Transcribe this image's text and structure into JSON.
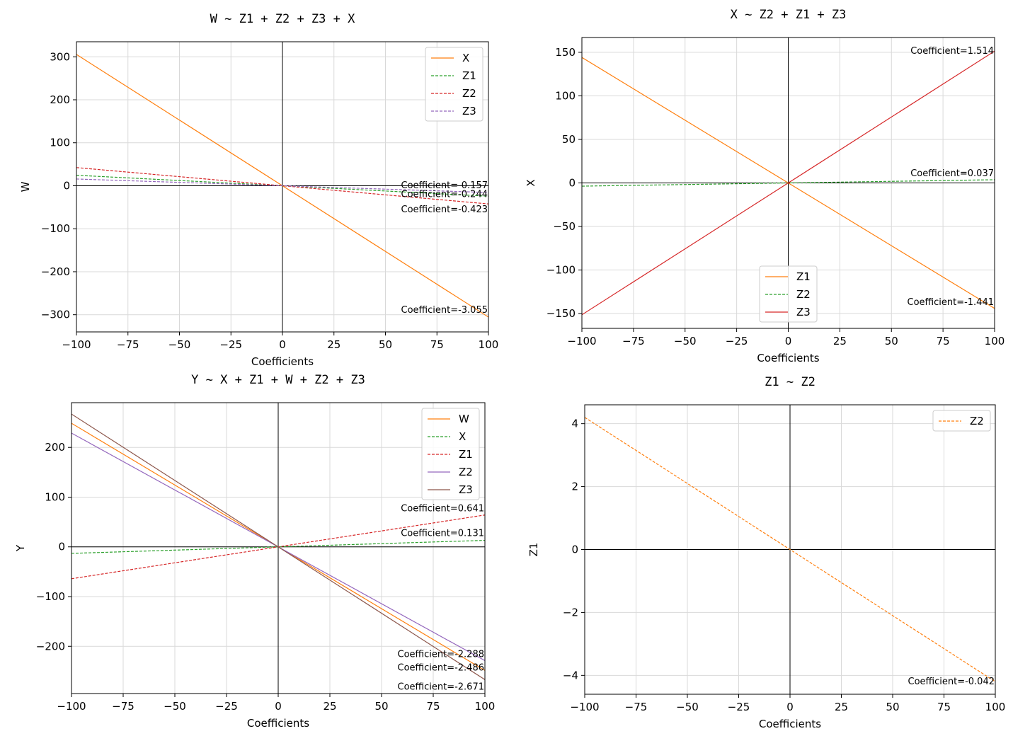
{
  "chart_data": [
    {
      "type": "line",
      "title": "W ~ Z1 + Z2 + Z3 + X",
      "xlabel": "Coefficients",
      "ylabel": "W",
      "xlim": [
        -100,
        100
      ],
      "ylim": [
        -340,
        335
      ],
      "xticks": [
        -100,
        -75,
        -50,
        -25,
        0,
        25,
        50,
        75,
        100
      ],
      "xtick_labels": [
        "−100",
        "−75",
        "−50",
        "−25",
        "0",
        "25",
        "50",
        "75",
        "100"
      ],
      "yticks": [
        300,
        200,
        100,
        0,
        -100,
        -200,
        -300
      ],
      "ytick_labels": [
        "300",
        "200",
        "100",
        "0",
        "−100",
        "−200",
        "−300"
      ],
      "grid": true,
      "legend_position": "upper-right",
      "series": [
        {
          "name": "X",
          "slope": -3.055,
          "color": "#ff7f0e",
          "dash": "solid"
        },
        {
          "name": "Z1",
          "slope": -0.244,
          "color": "#2ca02c",
          "dash": "dashed"
        },
        {
          "name": "Z2",
          "slope": -0.423,
          "color": "#d62728",
          "dash": "dashed"
        },
        {
          "name": "Z3",
          "slope": -0.157,
          "color": "#9467bd",
          "dash": "dashed"
        }
      ],
      "annotations": [
        {
          "text": "Coefficient=-0.157",
          "x": 100,
          "y": -0.157
        },
        {
          "text": "Coefficient=-0.244",
          "x": 100,
          "y": -0.244
        },
        {
          "text": "Coefficient=-0.423",
          "x": 100,
          "y": -0.423
        },
        {
          "text": "Coefficient=-3.055",
          "x": 100,
          "y": -3.055
        }
      ]
    },
    {
      "type": "line",
      "title": "X ~ Z2 + Z1 + Z3",
      "xlabel": "Coefficients",
      "ylabel": "X",
      "xlim": [
        -100,
        100
      ],
      "ylim": [
        -167,
        167
      ],
      "xticks": [
        -100,
        -75,
        -50,
        -25,
        0,
        25,
        50,
        75,
        100
      ],
      "xtick_labels": [
        "−100",
        "−75",
        "−50",
        "−25",
        "0",
        "25",
        "50",
        "75",
        "100"
      ],
      "yticks": [
        150,
        100,
        50,
        0,
        -50,
        -100,
        -150
      ],
      "ytick_labels": [
        "150",
        "100",
        "50",
        "0",
        "−50",
        "−100",
        "−150"
      ],
      "grid": true,
      "legend_position": "lower-center",
      "series": [
        {
          "name": "Z1",
          "slope": -1.441,
          "color": "#ff7f0e",
          "dash": "solid"
        },
        {
          "name": "Z2",
          "slope": 0.037,
          "color": "#2ca02c",
          "dash": "dashed"
        },
        {
          "name": "Z3",
          "slope": 1.514,
          "color": "#d62728",
          "dash": "solid"
        }
      ],
      "annotations": [
        {
          "text": "Coefficient=1.514",
          "x": 100,
          "y": 1.514
        },
        {
          "text": "Coefficient=0.037",
          "x": 100,
          "y": 0.037
        },
        {
          "text": "Coefficient=-1.441",
          "x": 100,
          "y": -1.441
        }
      ]
    },
    {
      "type": "line",
      "title": "Y ~ X + Z1 + W + Z2 + Z3",
      "xlabel": "Coefficients",
      "ylabel": "Y",
      "xlim": [
        -100,
        100
      ],
      "ylim": [
        -295,
        290
      ],
      "xticks": [
        -100,
        -75,
        -50,
        -25,
        0,
        25,
        50,
        75,
        100
      ],
      "xtick_labels": [
        "−100",
        "−75",
        "−50",
        "−25",
        "0",
        "25",
        "50",
        "75",
        "100"
      ],
      "yticks": [
        200,
        100,
        0,
        -100,
        -200
      ],
      "ytick_labels": [
        "200",
        "100",
        "0",
        "−100",
        "−200"
      ],
      "grid": true,
      "legend_position": "upper-right",
      "series": [
        {
          "name": "W",
          "slope": -2.486,
          "color": "#ff7f0e",
          "dash": "solid"
        },
        {
          "name": "X",
          "slope": 0.131,
          "color": "#2ca02c",
          "dash": "dashed"
        },
        {
          "name": "Z1",
          "slope": 0.641,
          "color": "#d62728",
          "dash": "dashed"
        },
        {
          "name": "Z2",
          "slope": -2.288,
          "color": "#9467bd",
          "dash": "solid"
        },
        {
          "name": "Z3",
          "slope": -2.671,
          "color": "#8c564b",
          "dash": "solid"
        }
      ],
      "annotations": [
        {
          "text": "Coefficient=0.641",
          "x": 100,
          "y": 0.641
        },
        {
          "text": "Coefficient=0.131",
          "x": 100,
          "y": 0.131
        },
        {
          "text": "Coefficient=-2.288",
          "x": 100,
          "y": -2.288
        },
        {
          "text": "Coefficient=-2.486",
          "x": 100,
          "y": -2.486
        },
        {
          "text": "Coefficient=-2.671",
          "x": 100,
          "y": -2.671
        }
      ]
    },
    {
      "type": "line",
      "title": "Z1 ~ Z2",
      "xlabel": "Coefficients",
      "ylabel": "Z1",
      "xlim": [
        -100,
        100
      ],
      "ylim": [
        -4.6,
        4.6
      ],
      "xticks": [
        -100,
        -75,
        -50,
        -25,
        0,
        25,
        50,
        75,
        100
      ],
      "xtick_labels": [
        "−100",
        "−75",
        "−50",
        "−25",
        "0",
        "25",
        "50",
        "75",
        "100"
      ],
      "yticks": [
        4,
        2,
        0,
        -2,
        -4
      ],
      "ytick_labels": [
        "4",
        "2",
        "0",
        "−2",
        "−4"
      ],
      "grid": true,
      "legend_position": "upper-right",
      "series": [
        {
          "name": "Z2",
          "slope": -0.042,
          "color": "#ff7f0e",
          "dash": "dashed"
        }
      ],
      "annotations": [
        {
          "text": "Coefficient=-0.042",
          "x": 100,
          "y": -0.042
        }
      ]
    }
  ]
}
